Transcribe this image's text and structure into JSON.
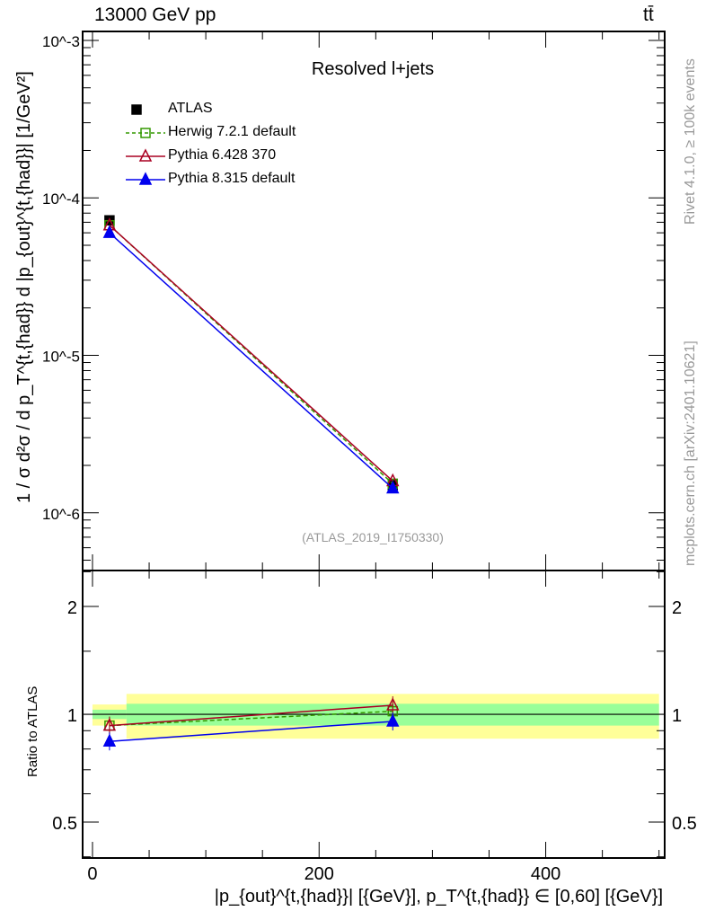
{
  "chart_data": [
    {
      "type": "line",
      "title": "Resolved l+jets",
      "top_left_label": "13000 GeV pp",
      "top_right_label": "tt̄",
      "side_label_top": "Rivet 4.1.0, ≥ 100k events",
      "side_label_bottom": "mcplots.cern.ch [arXiv:2401.10621]",
      "analysis_label": "(ATLAS_2019_I1750330)",
      "ylabel": "1 / σ d²σ / d p_T^{t,{had}} d |p_{out}^{t,{had}}| [1/GeV²]",
      "yscale": "log",
      "ylim": [
        4.3e-07,
        0.00114
      ],
      "xlim": [
        -8.7,
        505
      ],
      "ytick_labels": [
        "10^-3",
        "10^-4",
        "10^-5",
        "10^-6"
      ],
      "x": [
        15,
        265
      ],
      "bin_edges": [
        0,
        30,
        500
      ],
      "series": [
        {
          "name": "ATLAS",
          "color": "#000000",
          "marker": "square-filled",
          "values": [
            7.2e-05,
            1.5e-06
          ]
        },
        {
          "name": "Herwig 7.2.1 default",
          "color": "#339900",
          "marker": "square-open",
          "dash": true,
          "values": [
            6.7e-05,
            1.53e-06
          ]
        },
        {
          "name": "Pythia 6.428 370",
          "color": "#aa0022",
          "marker": "triangle-open",
          "values": [
            6.7e-05,
            1.59e-06
          ]
        },
        {
          "name": "Pythia 8.315 default",
          "color": "#0000ee",
          "marker": "triangle-filled",
          "values": [
            6e-05,
            1.43e-06
          ]
        }
      ]
    },
    {
      "type": "line",
      "ylabel": "Ratio to ATLAS",
      "xlabel": "|p_{out}^{t,{had}}| [{GeV}], p_T^{t,{had}} ∈ [0,60] [{GeV}]",
      "yscale": "log",
      "ylim": [
        0.397,
        2.52
      ],
      "ytick_labels": [
        "2",
        "1",
        "0.5"
      ],
      "xtick_labels": [
        "0",
        "200",
        "400"
      ],
      "xticks": [
        0,
        200,
        400
      ],
      "bands": {
        "yellow": {
          "color": "#ffff99",
          "low": [
            0.93,
            0.855
          ],
          "high": [
            1.065,
            1.14
          ]
        },
        "green": {
          "color": "#99ff99",
          "low": [
            0.97,
            0.93
          ],
          "high": [
            1.03,
            1.07
          ]
        }
      },
      "series": [
        {
          "name": "Herwig 7.2.1 default",
          "values": [
            0.93,
            1.02
          ]
        },
        {
          "name": "Pythia 6.428 370",
          "values": [
            0.93,
            1.06
          ]
        },
        {
          "name": "Pythia 8.315 default",
          "values": [
            0.84,
            0.955
          ]
        }
      ]
    }
  ]
}
